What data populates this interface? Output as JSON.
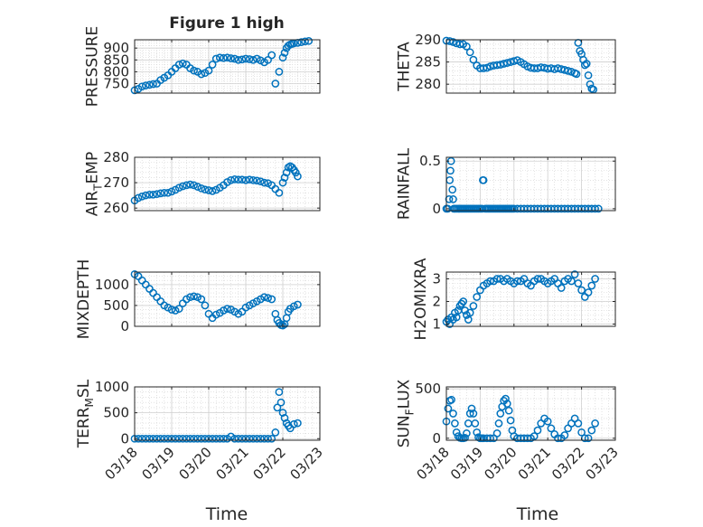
{
  "figure": {
    "title": "Figure 1 high"
  },
  "xticks": [
    "03/18",
    "03/19",
    "03/20",
    "03/21",
    "03/22",
    "03/23"
  ],
  "x_label": "Time",
  "chart_data": [
    {
      "type": "scatter",
      "ylabel": "PRESSURE",
      "xlim": [
        0,
        5
      ],
      "ylim": [
        710,
        935
      ],
      "yticks": [
        750,
        800,
        850,
        900
      ],
      "grid": true,
      "x": [
        0.0,
        0.1,
        0.2,
        0.3,
        0.4,
        0.5,
        0.6,
        0.7,
        0.8,
        0.9,
        1.0,
        1.1,
        1.2,
        1.3,
        1.4,
        1.5,
        1.6,
        1.7,
        1.8,
        1.9,
        2.0,
        2.1,
        2.2,
        2.3,
        2.4,
        2.5,
        2.6,
        2.7,
        2.8,
        2.9,
        3.0,
        3.1,
        3.2,
        3.3,
        3.4,
        3.5,
        3.6,
        3.7,
        3.8,
        3.9,
        4.0,
        4.05,
        4.1,
        4.15,
        4.2,
        4.25,
        4.3,
        4.4,
        4.5,
        4.6,
        4.7
      ],
      "y": [
        722,
        728,
        738,
        742,
        745,
        748,
        750,
        765,
        775,
        785,
        800,
        815,
        830,
        835,
        830,
        815,
        805,
        800,
        790,
        795,
        805,
        830,
        855,
        860,
        858,
        860,
        857,
        855,
        850,
        852,
        855,
        853,
        850,
        855,
        848,
        840,
        850,
        870,
        750,
        800,
        860,
        880,
        900,
        910,
        915,
        918,
        920,
        922,
        925,
        928,
        930
      ]
    },
    {
      "type": "scatter",
      "ylabel": "THETA",
      "xlim": [
        0,
        5
      ],
      "ylim": [
        278,
        290
      ],
      "yticks": [
        280,
        285,
        290
      ],
      "grid": true,
      "x": [
        0.0,
        0.1,
        0.2,
        0.3,
        0.4,
        0.5,
        0.6,
        0.7,
        0.8,
        0.9,
        1.0,
        1.1,
        1.2,
        1.3,
        1.4,
        1.5,
        1.6,
        1.7,
        1.8,
        1.9,
        2.0,
        2.1,
        2.2,
        2.3,
        2.4,
        2.5,
        2.6,
        2.7,
        2.8,
        2.9,
        3.0,
        3.1,
        3.2,
        3.3,
        3.4,
        3.5,
        3.6,
        3.7,
        3.8,
        3.85,
        3.9,
        3.95,
        4.0,
        4.05,
        4.1,
        4.15,
        4.2,
        4.25,
        4.3,
        4.35
      ],
      "y": [
        289.8,
        289.7,
        289.5,
        289.2,
        289.0,
        289.0,
        288.5,
        287.2,
        285.5,
        284.2,
        283.6,
        283.6,
        283.7,
        284.0,
        284.2,
        284.3,
        284.4,
        284.6,
        284.8,
        285.0,
        285.2,
        285.4,
        285.0,
        284.5,
        284.0,
        283.7,
        283.6,
        283.6,
        283.8,
        283.7,
        283.5,
        283.6,
        283.4,
        283.6,
        283.4,
        283.2,
        283.0,
        282.8,
        282.5,
        282.3,
        289.3,
        287.5,
        286.8,
        285.5,
        284.3,
        284.6,
        282.0,
        280.0,
        279.0,
        278.8
      ]
    },
    {
      "type": "scatter",
      "ylabel": "AIR_TEMP",
      "xlim": [
        0,
        5
      ],
      "ylim": [
        259,
        280
      ],
      "yticks": [
        260,
        270,
        280
      ],
      "grid": true,
      "x": [
        0.0,
        0.1,
        0.2,
        0.3,
        0.4,
        0.5,
        0.6,
        0.7,
        0.8,
        0.9,
        1.0,
        1.1,
        1.2,
        1.3,
        1.4,
        1.5,
        1.6,
        1.7,
        1.8,
        1.9,
        2.0,
        2.1,
        2.2,
        2.3,
        2.4,
        2.5,
        2.6,
        2.7,
        2.8,
        2.9,
        3.0,
        3.1,
        3.2,
        3.3,
        3.4,
        3.5,
        3.6,
        3.7,
        3.8,
        3.9,
        4.0,
        4.05,
        4.1,
        4.15,
        4.2,
        4.25,
        4.3,
        4.35,
        4.4
      ],
      "y": [
        263,
        264,
        264.6,
        265,
        265.3,
        265.3,
        265.5,
        265.8,
        266,
        266,
        266.5,
        267.2,
        268,
        268.6,
        269,
        269.3,
        269.0,
        268.4,
        267.8,
        267.3,
        267.0,
        266.7,
        267.2,
        268.0,
        269.0,
        270.2,
        271.0,
        271.3,
        271.2,
        271.2,
        271.0,
        271.2,
        271.0,
        270.8,
        270.5,
        270.0,
        269.8,
        269.0,
        267.5,
        266.0,
        270.0,
        272.0,
        274.0,
        276.0,
        276.5,
        276.0,
        275.0,
        274.0,
        272.5
      ]
    },
    {
      "type": "scatter",
      "ylabel": "RAINFALL",
      "xlim": [
        0,
        5
      ],
      "ylim": [
        -0.02,
        0.54
      ],
      "yticks": [
        0,
        0.5
      ],
      "grid": true,
      "x": [
        0.0,
        0.04,
        0.08,
        0.1,
        0.12,
        0.14,
        0.18,
        0.2,
        0.22,
        0.25,
        0.3,
        0.35,
        0.4,
        0.45,
        0.5,
        0.55,
        0.6,
        0.65,
        0.7,
        0.75,
        0.8,
        0.85,
        0.9,
        0.95,
        1.0,
        1.05,
        1.08,
        1.1,
        1.15,
        1.2,
        1.25,
        1.3,
        1.35,
        1.4,
        1.45,
        1.5,
        1.55,
        1.6,
        1.65,
        1.7,
        1.75,
        1.8,
        1.85,
        1.9,
        1.95,
        2.0,
        2.1,
        2.2,
        2.3,
        2.4,
        2.5,
        2.6,
        2.7,
        2.8,
        2.9,
        3.0,
        3.1,
        3.2,
        3.3,
        3.4,
        3.5,
        3.6,
        3.7,
        3.8,
        3.9,
        4.0,
        4.1,
        4.2,
        4.3,
        4.4,
        4.5
      ],
      "y": [
        0,
        0,
        0.1,
        0.3,
        0.4,
        0.5,
        0.2,
        0.1,
        0,
        0,
        0,
        0,
        0,
        0,
        0,
        0,
        0,
        0,
        0,
        0,
        0,
        0,
        0,
        0,
        0,
        0,
        0.3,
        0.3,
        0,
        0,
        0,
        0,
        0,
        0,
        0,
        0,
        0,
        0,
        0,
        0,
        0,
        0,
        0,
        0,
        0,
        0,
        0,
        0,
        0,
        0,
        0,
        0,
        0,
        0,
        0,
        0,
        0,
        0,
        0,
        0,
        0,
        0,
        0,
        0,
        0,
        0,
        0,
        0,
        0,
        0,
        0
      ]
    },
    {
      "type": "scatter",
      "ylabel": "MIXDEPTH",
      "xlim": [
        0,
        5
      ],
      "ylim": [
        0,
        1300
      ],
      "yticks": [
        0,
        500,
        1000
      ],
      "grid": true,
      "x": [
        0.0,
        0.1,
        0.2,
        0.3,
        0.4,
        0.5,
        0.6,
        0.7,
        0.8,
        0.9,
        1.0,
        1.1,
        1.2,
        1.3,
        1.4,
        1.5,
        1.6,
        1.7,
        1.8,
        1.9,
        2.0,
        2.1,
        2.2,
        2.3,
        2.4,
        2.5,
        2.6,
        2.7,
        2.8,
        2.9,
        3.0,
        3.1,
        3.2,
        3.3,
        3.4,
        3.5,
        3.6,
        3.7,
        3.8,
        3.85,
        3.9,
        3.95,
        4.0,
        4.05,
        4.1,
        4.15,
        4.2,
        4.3,
        4.4
      ],
      "y": [
        1250,
        1200,
        1100,
        1000,
        900,
        800,
        700,
        600,
        500,
        450,
        400,
        380,
        420,
        550,
        650,
        700,
        720,
        700,
        650,
        500,
        300,
        200,
        280,
        320,
        380,
        420,
        400,
        350,
        300,
        350,
        450,
        500,
        550,
        600,
        650,
        700,
        680,
        650,
        300,
        150,
        80,
        30,
        20,
        50,
        200,
        350,
        420,
        480,
        520
      ]
    },
    {
      "type": "scatter",
      "ylabel": "H2OMIXRA",
      "xlim": [
        0,
        5
      ],
      "ylim": [
        0.9,
        3.3
      ],
      "yticks": [
        1,
        2,
        3
      ],
      "grid": true,
      "x": [
        0.0,
        0.05,
        0.1,
        0.15,
        0.2,
        0.25,
        0.3,
        0.35,
        0.4,
        0.45,
        0.5,
        0.55,
        0.6,
        0.65,
        0.7,
        0.8,
        0.9,
        1.0,
        1.1,
        1.2,
        1.3,
        1.4,
        1.5,
        1.6,
        1.7,
        1.8,
        1.9,
        2.0,
        2.1,
        2.2,
        2.3,
        2.4,
        2.5,
        2.6,
        2.7,
        2.8,
        2.9,
        3.0,
        3.1,
        3.2,
        3.3,
        3.4,
        3.5,
        3.6,
        3.7,
        3.8,
        3.9,
        4.0,
        4.1,
        4.2,
        4.3,
        4.4
      ],
      "y": [
        1.1,
        1.2,
        1.0,
        1.3,
        1.2,
        1.5,
        1.3,
        1.6,
        1.8,
        1.9,
        2.0,
        1.6,
        1.4,
        1.2,
        1.5,
        1.8,
        2.2,
        2.5,
        2.7,
        2.8,
        2.9,
        2.9,
        3.0,
        3.0,
        2.9,
        3.0,
        2.9,
        2.8,
        2.9,
        2.9,
        3.0,
        2.8,
        2.7,
        2.9,
        3.0,
        3.0,
        2.9,
        2.8,
        2.9,
        3.0,
        2.8,
        2.6,
        2.9,
        3.0,
        2.9,
        3.2,
        2.8,
        2.5,
        2.2,
        2.4,
        2.7,
        3.0
      ]
    },
    {
      "type": "scatter",
      "ylabel": "TERR_MSL",
      "xlim": [
        0,
        5
      ],
      "ylim": [
        -30,
        1000
      ],
      "yticks": [
        0,
        500,
        1000
      ],
      "grid": true,
      "x": [
        0.0,
        0.1,
        0.2,
        0.3,
        0.4,
        0.5,
        0.6,
        0.7,
        0.8,
        0.9,
        1.0,
        1.1,
        1.2,
        1.3,
        1.4,
        1.5,
        1.6,
        1.7,
        1.8,
        1.9,
        2.0,
        2.1,
        2.2,
        2.3,
        2.4,
        2.5,
        2.6,
        2.7,
        2.8,
        2.9,
        3.0,
        3.1,
        3.2,
        3.3,
        3.4,
        3.5,
        3.6,
        3.7,
        3.8,
        3.85,
        3.9,
        3.95,
        4.0,
        4.05,
        4.1,
        4.15,
        4.2,
        4.3,
        4.4
      ],
      "y": [
        0,
        0,
        0,
        0,
        0,
        0,
        0,
        0,
        0,
        0,
        0,
        0,
        0,
        0,
        0,
        0,
        0,
        0,
        0,
        0,
        0,
        0,
        0,
        0,
        0,
        0,
        40,
        0,
        0,
        0,
        0,
        0,
        0,
        0,
        0,
        0,
        0,
        0,
        120,
        600,
        900,
        700,
        500,
        400,
        300,
        250,
        200,
        280,
        300
      ]
    },
    {
      "type": "scatter",
      "ylabel": "SUN_FLUX",
      "xlim": [
        0,
        5
      ],
      "ylim": [
        -20,
        520
      ],
      "yticks": [
        0,
        500
      ],
      "grid": true,
      "x": [
        0.0,
        0.05,
        0.1,
        0.15,
        0.2,
        0.25,
        0.3,
        0.35,
        0.4,
        0.45,
        0.5,
        0.55,
        0.6,
        0.65,
        0.7,
        0.75,
        0.8,
        0.85,
        0.9,
        0.95,
        1.0,
        1.05,
        1.1,
        1.2,
        1.3,
        1.4,
        1.5,
        1.55,
        1.6,
        1.65,
        1.7,
        1.75,
        1.8,
        1.85,
        1.9,
        1.95,
        2.0,
        2.1,
        2.2,
        2.3,
        2.4,
        2.5,
        2.6,
        2.7,
        2.8,
        2.9,
        3.0,
        3.1,
        3.2,
        3.3,
        3.4,
        3.5,
        3.6,
        3.7,
        3.8,
        3.9,
        4.0,
        4.1,
        4.2,
        4.3,
        4.4
      ],
      "y": [
        170,
        300,
        380,
        390,
        250,
        150,
        60,
        20,
        5,
        0,
        0,
        5,
        50,
        150,
        250,
        300,
        250,
        150,
        60,
        10,
        0,
        0,
        0,
        0,
        0,
        0,
        50,
        150,
        250,
        320,
        380,
        400,
        350,
        280,
        180,
        80,
        20,
        0,
        0,
        0,
        0,
        0,
        20,
        80,
        150,
        200,
        170,
        100,
        40,
        0,
        0,
        30,
        100,
        150,
        200,
        150,
        60,
        0,
        0,
        80,
        150
      ]
    }
  ]
}
